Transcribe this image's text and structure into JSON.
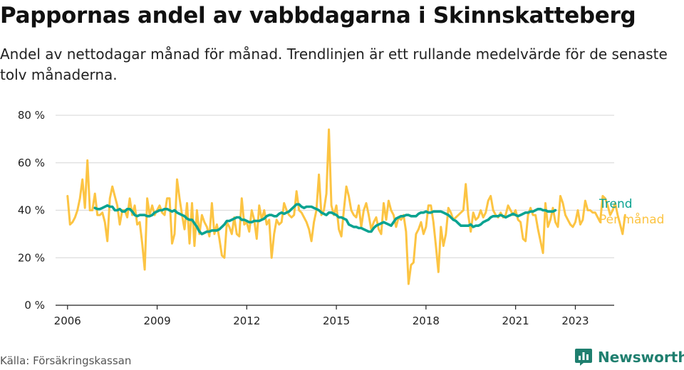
{
  "title": "Pappornas andel av vabbdagarna i Skinnskatteberg",
  "subtitle": "Andel av nettodagar månad för månad. Trendlinjen är ett rullande medelvärde för de senaste tolv månaderna.",
  "source": "Källa: Försäkringskassan",
  "brand": "Newsworthy",
  "colors": {
    "trend": "#0aa391",
    "monthly": "#fcc443",
    "grid": "#dddddd",
    "brand": "#1f7f6f"
  },
  "chart_data": {
    "type": "line",
    "x_unit": "year",
    "xlim": [
      2005.6,
      2024.3
    ],
    "ylim": [
      0,
      80
    ],
    "yticks": [
      0,
      20,
      40,
      60,
      80
    ],
    "ytick_labels": [
      "0 %",
      "20 %",
      "40 %",
      "60 %",
      "80 %"
    ],
    "xticks": [
      2006,
      2009,
      2012,
      2015,
      2018,
      2021,
      2023
    ],
    "xtick_labels": [
      "2006",
      "2009",
      "2012",
      "2015",
      "2018",
      "2021",
      "2023"
    ],
    "grid": true,
    "legend": "right",
    "series": [
      {
        "name": "Per månad",
        "color": "#fcc443",
        "x_start": 2006.0,
        "x_step": 0.08333,
        "values": [
          46,
          34,
          35,
          37,
          40,
          45,
          53,
          41,
          61,
          40,
          40,
          47,
          38,
          38,
          39,
          35,
          27,
          45,
          50,
          46,
          42,
          34,
          40,
          40,
          37,
          45,
          38,
          42,
          34,
          35,
          26,
          15,
          45,
          38,
          42,
          38,
          40,
          42,
          39,
          38,
          45,
          45,
          26,
          30,
          53,
          45,
          38,
          32,
          43,
          26,
          43,
          25,
          40,
          30,
          38,
          35,
          33,
          29,
          43,
          30,
          34,
          28,
          21,
          20,
          35,
          33,
          30,
          37,
          30,
          29,
          45,
          34,
          35,
          31,
          40,
          36,
          28,
          42,
          36,
          40,
          34,
          36,
          20,
          30,
          36,
          34,
          35,
          43,
          40,
          38,
          37,
          38,
          48,
          40,
          39,
          37,
          35,
          32,
          27,
          35,
          40,
          55,
          38,
          40,
          47,
          74,
          42,
          38,
          42,
          32,
          29,
          40,
          50,
          46,
          40,
          38,
          37,
          42,
          33,
          40,
          43,
          38,
          32,
          35,
          37,
          32,
          30,
          43,
          36,
          44,
          40,
          38,
          33,
          37,
          36,
          38,
          31,
          9,
          17,
          18,
          30,
          32,
          35,
          30,
          33,
          42,
          42,
          35,
          25,
          14,
          33,
          25,
          30,
          41,
          39,
          36,
          37,
          38,
          39,
          40,
          51,
          38,
          31,
          39,
          36,
          37,
          40,
          37,
          39,
          44,
          46,
          40,
          38,
          37,
          39,
          37,
          38,
          42,
          40,
          38,
          40,
          36,
          35,
          28,
          27,
          38,
          41,
          38,
          38,
          32,
          27,
          22,
          43,
          33,
          36,
          41,
          35,
          33,
          46,
          43,
          38,
          36,
          34,
          33,
          35,
          40,
          34,
          36,
          44,
          40,
          40,
          39,
          39,
          37,
          35,
          46,
          45,
          42,
          38,
          40,
          43,
          38,
          34,
          30,
          38
        ]
      },
      {
        "name": "Trend",
        "color": "#0aa391",
        "x_start": 2006.9167,
        "x_step": 0.08333,
        "values": [
          41,
          40.5,
          40.5,
          41,
          41.5,
          42,
          41.5,
          41.5,
          40,
          40,
          40.5,
          39.5,
          39.5,
          40.5,
          40.5,
          39.5,
          38,
          37.5,
          38,
          38,
          38,
          37.5,
          37.5,
          38,
          39,
          39.5,
          40,
          40,
          40.5,
          40.5,
          40,
          39.5,
          40,
          39,
          38.5,
          38,
          37.5,
          36.5,
          36,
          36,
          34.5,
          33,
          31,
          30,
          30.5,
          31,
          31,
          31.5,
          31.5,
          31.5,
          32,
          33,
          34,
          35.5,
          35.5,
          36,
          36.5,
          37,
          37,
          36,
          36,
          35.5,
          35,
          35,
          35.5,
          35.5,
          35.5,
          36,
          36.5,
          37.5,
          38,
          38,
          37.5,
          37.5,
          38.5,
          39,
          38.5,
          39,
          39.5,
          40.5,
          41.5,
          42.5,
          42.5,
          41.5,
          41,
          41.5,
          41.5,
          41.5,
          41,
          40.5,
          40,
          39,
          38.5,
          38,
          39,
          39,
          38.5,
          38,
          37,
          37,
          36.5,
          36,
          34,
          33.5,
          33,
          33,
          32.5,
          32.5,
          32,
          31.5,
          31,
          31,
          32.5,
          33.5,
          34,
          34.5,
          35,
          34.5,
          34,
          33.5,
          35,
          36.5,
          37,
          37.5,
          37.5,
          38,
          38,
          37.5,
          37.5,
          37.5,
          38.5,
          39,
          39,
          39.5,
          39,
          39,
          39.5,
          39.5,
          39.5,
          39.5,
          39,
          38.5,
          38,
          37,
          36,
          35.5,
          34.5,
          33.5,
          33.5,
          33.5,
          33.5,
          34,
          33,
          33.5,
          33.5,
          34,
          35,
          35.5,
          36,
          37,
          37.5,
          37.5,
          37.5,
          38,
          37.5,
          37,
          37.5,
          38,
          38.5,
          38,
          37.5,
          38,
          38.5,
          39,
          39,
          39.5,
          39.5,
          40,
          40.5,
          40.5,
          40,
          40,
          39.5,
          39.5,
          39.5,
          40
        ]
      }
    ]
  }
}
